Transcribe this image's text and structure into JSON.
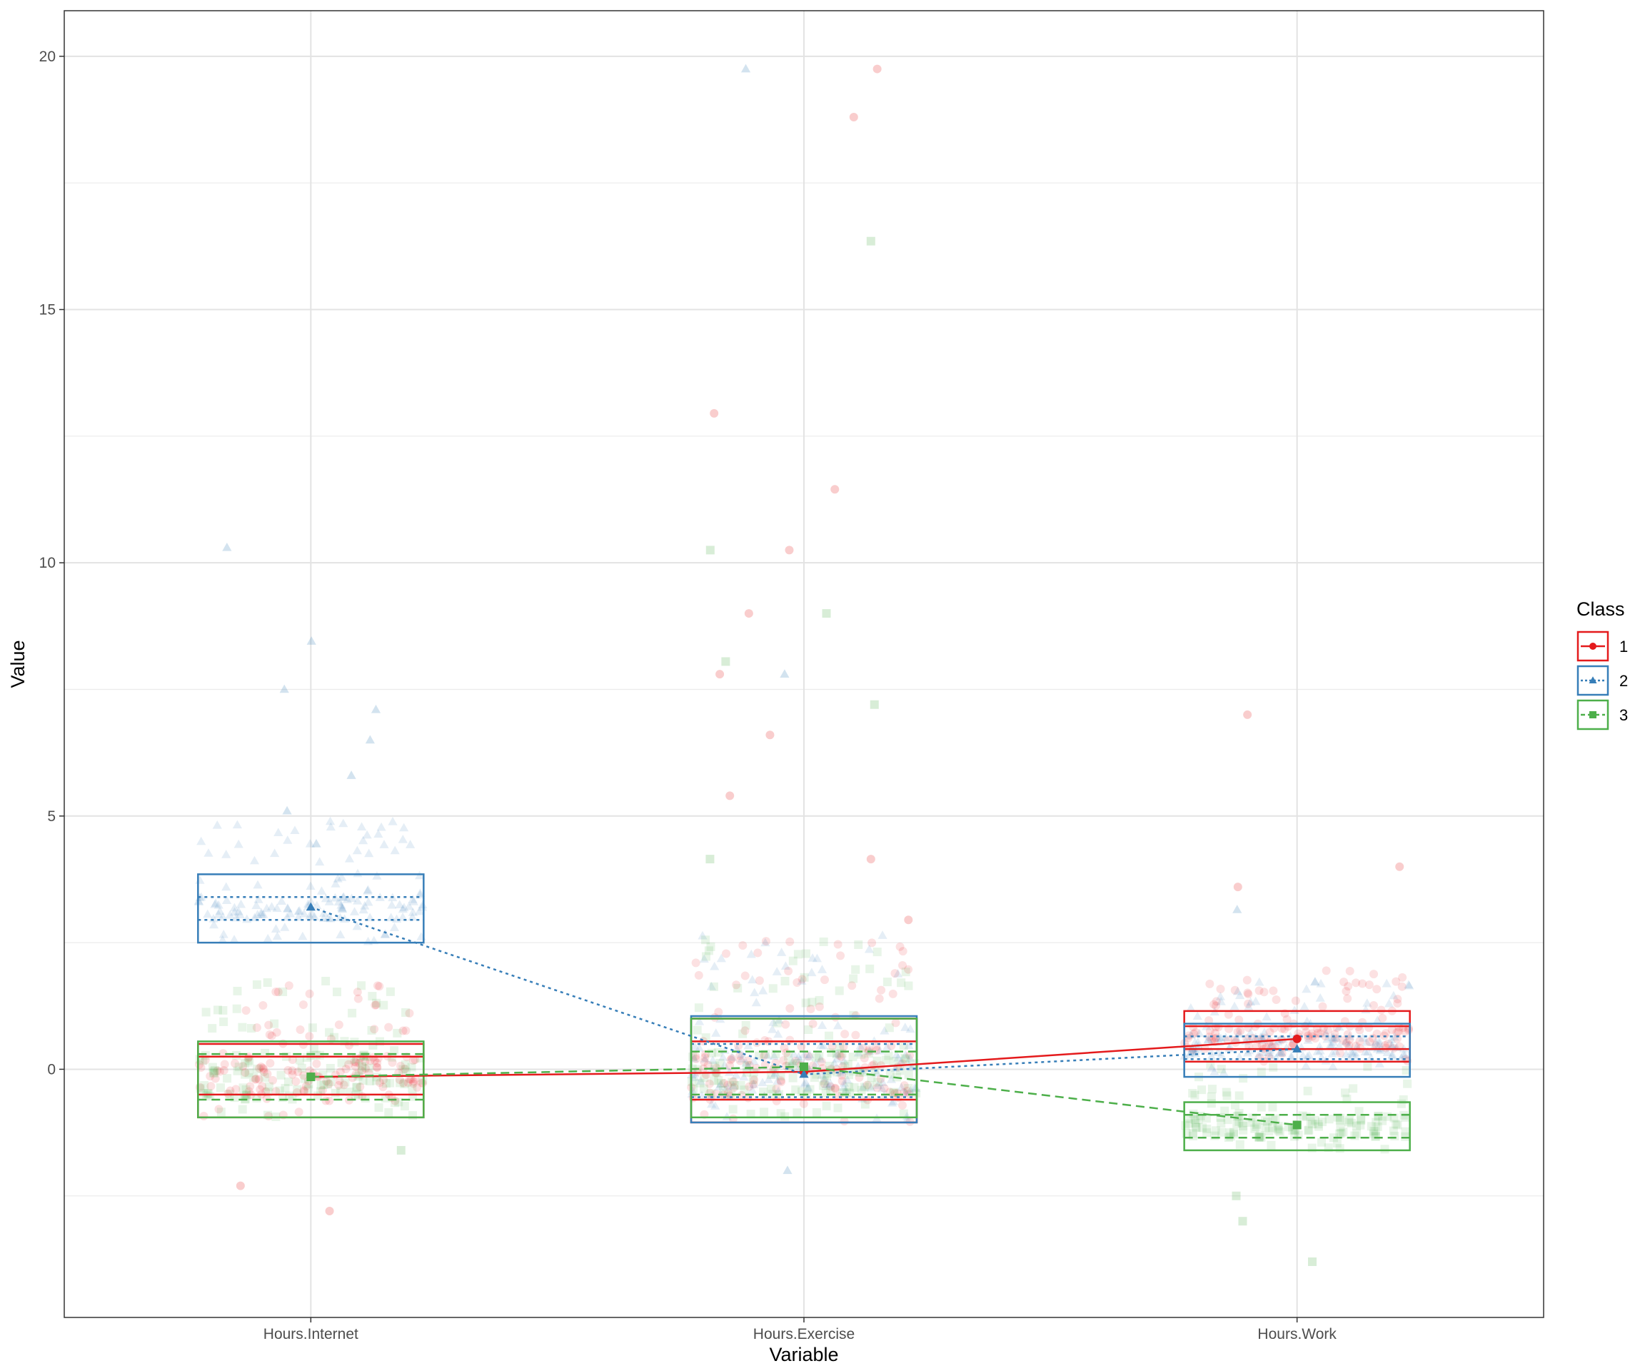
{
  "chart_data": {
    "type": "scatter",
    "xlabel": "Variable",
    "ylabel": "Value",
    "categories": [
      "Hours.Internet",
      "Hours.Exercise",
      "Hours.Work"
    ],
    "ylim": [
      -4.9,
      20.9
    ],
    "yticks": [
      0,
      5,
      10,
      15,
      20
    ],
    "grid": true,
    "legend": {
      "title": "Class",
      "position": "right",
      "entries": [
        "1",
        "2",
        "3"
      ]
    },
    "colors": {
      "1": "#e41a1c",
      "2": "#377eb8",
      "3": "#4daf4a"
    },
    "series": [
      {
        "name": "1",
        "marker": "circle",
        "linetype": "solid",
        "means": [
          -0.15,
          -0.05,
          0.6
        ],
        "boxes": [
          {
            "category": "Hours.Internet",
            "low": -0.95,
            "q1": -0.5,
            "q3": 0.25,
            "high": 0.5
          },
          {
            "category": "Hours.Exercise",
            "low": -1.05,
            "q1": -0.6,
            "q3": 0.55,
            "high": 1.0
          },
          {
            "category": "Hours.Work",
            "low": 0.15,
            "q1": 0.4,
            "q3": 0.85,
            "high": 1.15
          }
        ],
        "outliers": [
          [
            "Hours.Exercise",
            19.75
          ],
          [
            "Hours.Exercise",
            18.8
          ],
          [
            "Hours.Exercise",
            12.95
          ],
          [
            "Hours.Exercise",
            11.45
          ],
          [
            "Hours.Exercise",
            10.25
          ],
          [
            "Hours.Exercise",
            9.0
          ],
          [
            "Hours.Exercise",
            7.8
          ],
          [
            "Hours.Exercise",
            6.6
          ],
          [
            "Hours.Exercise",
            5.4
          ],
          [
            "Hours.Exercise",
            4.15
          ],
          [
            "Hours.Exercise",
            2.95
          ],
          [
            "Hours.Work",
            7.0
          ],
          [
            "Hours.Work",
            4.0
          ],
          [
            "Hours.Work",
            3.6
          ],
          [
            "Hours.Internet",
            -2.8
          ],
          [
            "Hours.Internet",
            -2.3
          ]
        ]
      },
      {
        "name": "2",
        "marker": "triangle",
        "linetype": "dotted",
        "means": [
          3.2,
          -0.1,
          0.4
        ],
        "boxes": [
          {
            "category": "Hours.Internet",
            "low": 2.5,
            "q1": 2.95,
            "q3": 3.4,
            "high": 3.85
          },
          {
            "category": "Hours.Exercise",
            "low": -1.05,
            "q1": -0.55,
            "q3": 0.5,
            "high": 1.05
          },
          {
            "category": "Hours.Work",
            "low": -0.15,
            "q1": 0.2,
            "q3": 0.65,
            "high": 0.9
          }
        ],
        "outliers": [
          [
            "Hours.Internet",
            10.3
          ],
          [
            "Hours.Internet",
            8.45
          ],
          [
            "Hours.Internet",
            7.5
          ],
          [
            "Hours.Internet",
            7.1
          ],
          [
            "Hours.Internet",
            6.5
          ],
          [
            "Hours.Internet",
            5.8
          ],
          [
            "Hours.Internet",
            5.1
          ],
          [
            "Hours.Internet",
            4.45
          ],
          [
            "Hours.Exercise",
            19.75
          ],
          [
            "Hours.Exercise",
            7.8
          ],
          [
            "Hours.Work",
            3.15
          ],
          [
            "Hours.Exercise",
            -2.0
          ]
        ]
      },
      {
        "name": "3",
        "marker": "square",
        "linetype": "dashed",
        "means": [
          -0.15,
          0.05,
          -1.1
        ],
        "boxes": [
          {
            "category": "Hours.Internet",
            "low": -0.95,
            "q1": -0.6,
            "q3": 0.3,
            "high": 0.55
          },
          {
            "category": "Hours.Exercise",
            "low": -0.95,
            "q1": -0.5,
            "q3": 0.35,
            "high": 1.0
          },
          {
            "category": "Hours.Work",
            "low": -1.6,
            "q1": -1.35,
            "q3": -0.9,
            "high": -0.65
          }
        ],
        "outliers": [
          [
            "Hours.Exercise",
            16.35
          ],
          [
            "Hours.Exercise",
            10.25
          ],
          [
            "Hours.Exercise",
            9.0
          ],
          [
            "Hours.Exercise",
            8.05
          ],
          [
            "Hours.Exercise",
            7.2
          ],
          [
            "Hours.Exercise",
            4.15
          ],
          [
            "Hours.Work",
            -3.0
          ],
          [
            "Hours.Work",
            -3.8
          ],
          [
            "Hours.Work",
            -2.5
          ],
          [
            "Hours.Internet",
            -1.6
          ]
        ]
      }
    ]
  }
}
